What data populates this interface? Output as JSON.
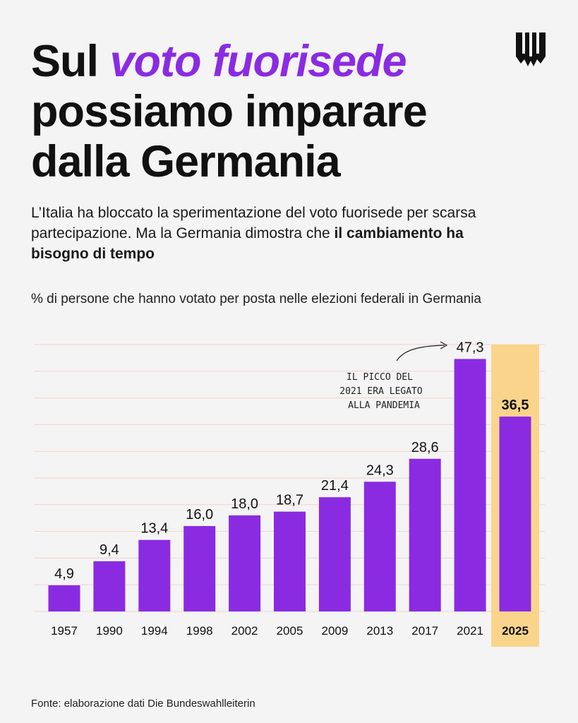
{
  "header": {
    "title_part1": "Sul ",
    "title_highlight": "voto fuorisede",
    "title_part2": "possiamo imparare dalla Germania",
    "subtitle_text": "L’Italia ha bloccato la sperimentazione del voto fuorisede per scarsa partecipazione. Ma la Germania dimostra che ",
    "subtitle_bold": "il cambiamento ha bisogno di tempo",
    "logo_icon": "publisher-logo-icon"
  },
  "colors": {
    "accent": "#8a2be2",
    "bar": "#8a2be2",
    "highlight_band": "#fbd48c",
    "gridline": "#f0d2cc",
    "background": "#f4f4f4"
  },
  "chart_data": {
    "type": "bar",
    "title": "% di persone che hanno votato per posta nelle elezioni federali in Germania",
    "categories": [
      "1957",
      "1990",
      "1994",
      "1998",
      "2002",
      "2005",
      "2009",
      "2013",
      "2017",
      "2021",
      "2025"
    ],
    "values": [
      4.9,
      9.4,
      13.4,
      16.0,
      18.0,
      18.7,
      21.4,
      24.3,
      28.6,
      47.3,
      36.5
    ],
    "value_labels": [
      "4,9",
      "9,4",
      "13,4",
      "16,0",
      "18,0",
      "18,7",
      "21,4",
      "24,3",
      "28,6",
      "47,3",
      "36,5"
    ],
    "highlighted_category": "2025",
    "annotation": {
      "target": "2021",
      "lines": [
        "IL PICCO DEL",
        "2021 ERA LEGATO",
        "ALLA PANDEMIA"
      ]
    },
    "ylim": [
      0,
      50
    ],
    "grid": true,
    "xlabel": "",
    "ylabel": ""
  },
  "footer": {
    "source": "Fonte: elaborazione dati Die Bundeswahlleiterin"
  }
}
